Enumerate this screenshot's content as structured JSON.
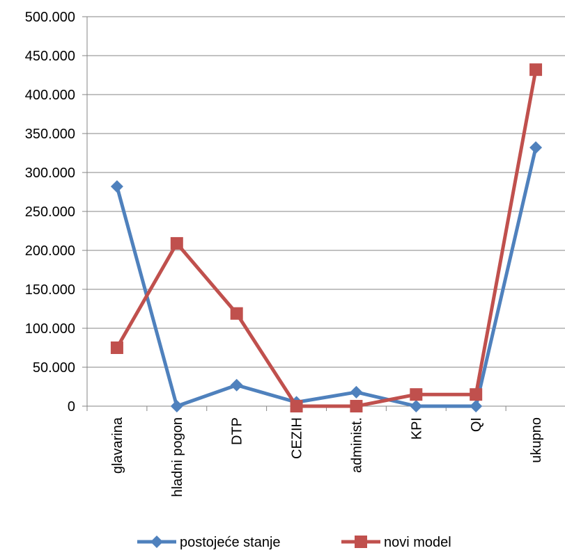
{
  "chart_data": {
    "type": "line",
    "categories": [
      "glavarina",
      "hladni pogon",
      "DTP",
      "CEZIH",
      "administ.",
      "KPI",
      "QI",
      "ukupno"
    ],
    "series": [
      {
        "name": "postojeće stanje",
        "color": "#4F81BD",
        "marker": "diamond",
        "values": [
          282000,
          0,
          27000,
          5000,
          18000,
          0,
          0,
          332000
        ]
      },
      {
        "name": "novi model",
        "color": "#C0504D",
        "marker": "square",
        "values": [
          75000,
          209000,
          119000,
          0,
          0,
          15000,
          15000,
          432000
        ]
      }
    ],
    "ylim": [
      0,
      500000
    ],
    "yticks": [
      0,
      50000,
      100000,
      150000,
      200000,
      250000,
      300000,
      350000,
      400000,
      450000,
      500000
    ],
    "ytick_labels": [
      "0",
      "50.000",
      "100.000",
      "150.000",
      "200.000",
      "250.000",
      "300.000",
      "350.000",
      "400.000",
      "450.000",
      "500.000"
    ],
    "grid": true,
    "legend": "bottom"
  }
}
